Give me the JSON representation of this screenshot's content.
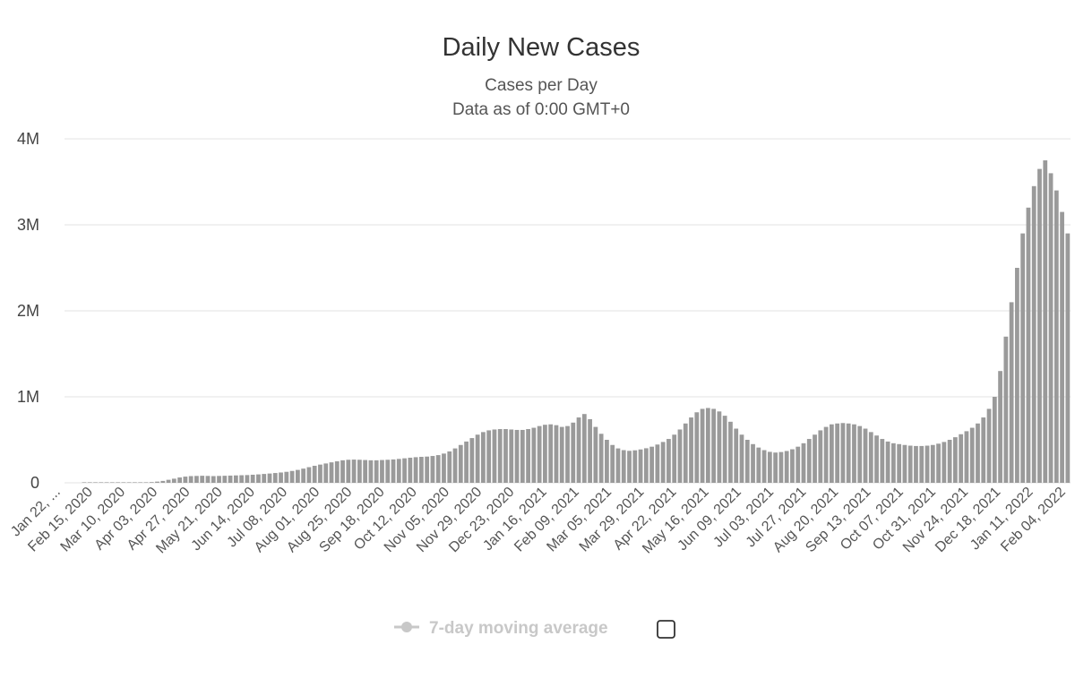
{
  "chart_data": {
    "type": "bar",
    "title": "Daily New Cases",
    "subtitle_lines": [
      "Cases per Day",
      "Data as of 0:00 GMT+0"
    ],
    "xlabel": "",
    "ylabel": "",
    "ylim": [
      0,
      4000000
    ],
    "y_ticks": [
      0,
      1000000,
      2000000,
      3000000,
      4000000
    ],
    "y_tick_labels": [
      "0",
      "1M",
      "2M",
      "3M",
      "4M"
    ],
    "x_tick_labels": [
      "Jan 22, ...",
      "Feb 15, 2020",
      "Mar 10, 2020",
      "Apr 03, 2020",
      "Apr 27, 2020",
      "May 21, 2020",
      "Jun 14, 2020",
      "Jul 08, 2020",
      "Aug 01, 2020",
      "Aug 25, 2020",
      "Sep 18, 2020",
      "Oct 12, 2020",
      "Nov 05, 2020",
      "Nov 29, 2020",
      "Dec 23, 2020",
      "Jan 16, 2021",
      "Feb 09, 2021",
      "Mar 05, 2021",
      "Mar 29, 2021",
      "Apr 22, 2021",
      "May 16, 2021",
      "Jun 09, 2021",
      "Jul 03, 2021",
      "Jul 27, 2021",
      "Aug 20, 2021",
      "Sep 13, 2021",
      "Oct 07, 2021",
      "Oct 31, 2021",
      "Nov 24, 2021",
      "Dec 18, 2021",
      "Jan 11, 2022",
      "Feb 04, 2022"
    ],
    "first_date": "Jan 22, 2020",
    "last_date": "Feb 04, 2022",
    "series": [
      {
        "name": "Daily New Cases",
        "sample_interval_days": 3,
        "values": [
          0,
          0,
          0,
          1000,
          2000,
          2000,
          3000,
          3000,
          2000,
          2000,
          2000,
          2000,
          3000,
          4000,
          5000,
          8000,
          14000,
          22000,
          35000,
          48000,
          62000,
          72000,
          78000,
          80000,
          82000,
          80000,
          78000,
          80000,
          82000,
          84000,
          86000,
          88000,
          90000,
          94000,
          98000,
          103000,
          108000,
          114000,
          120000,
          128000,
          138000,
          150000,
          165000,
          182000,
          198000,
          212000,
          225000,
          238000,
          250000,
          262000,
          268000,
          270000,
          268000,
          265000,
          262000,
          262000,
          265000,
          268000,
          272000,
          278000,
          285000,
          292000,
          298000,
          302000,
          305000,
          312000,
          322000,
          340000,
          365000,
          400000,
          440000,
          480000,
          520000,
          560000,
          590000,
          610000,
          620000,
          625000,
          625000,
          620000,
          615000,
          615000,
          625000,
          640000,
          660000,
          675000,
          680000,
          670000,
          650000,
          660000,
          700000,
          760000,
          800000,
          740000,
          650000,
          570000,
          500000,
          440000,
          400000,
          380000,
          372000,
          378000,
          388000,
          402000,
          420000,
          445000,
          475000,
          510000,
          560000,
          620000,
          690000,
          760000,
          820000,
          860000,
          870000,
          860000,
          830000,
          780000,
          710000,
          630000,
          560000,
          500000,
          450000,
          410000,
          380000,
          360000,
          352000,
          358000,
          370000,
          390000,
          420000,
          460000,
          510000,
          560000,
          610000,
          650000,
          680000,
          690000,
          695000,
          690000,
          680000,
          660000,
          630000,
          590000,
          550000,
          510000,
          480000,
          460000,
          450000,
          440000,
          432000,
          428000,
          428000,
          432000,
          440000,
          455000,
          475000,
          500000,
          530000,
          565000,
          600000,
          640000,
          690000,
          760000,
          860000,
          1000000,
          1300000,
          1700000,
          2100000,
          2500000,
          2900000,
          3200000,
          3450000,
          3650000,
          3750000,
          3600000,
          3400000,
          3150000,
          2900000
        ]
      }
    ]
  },
  "legend": {
    "label": "7-day moving average",
    "marker_color": "#c8c8c8"
  },
  "colors": {
    "bar": "#9a9a9a",
    "grid": "#e3e3e3",
    "title": "#333333"
  }
}
